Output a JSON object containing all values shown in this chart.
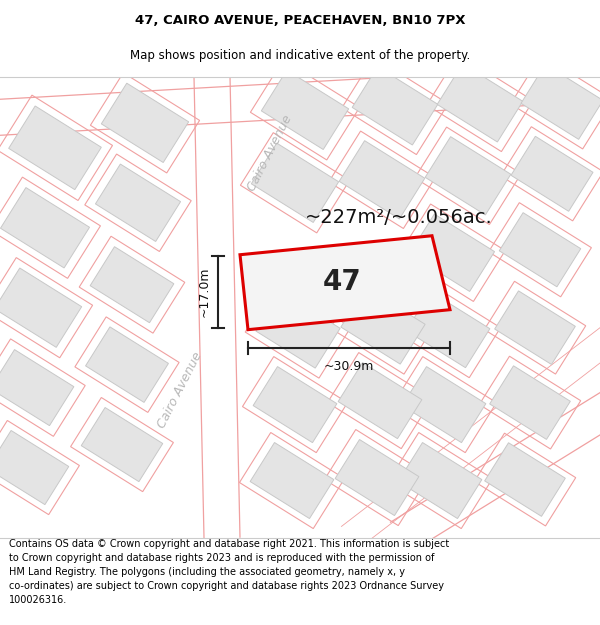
{
  "title_line1": "47, CAIRO AVENUE, PEACEHAVEN, BN10 7PX",
  "title_line2": "Map shows position and indicative extent of the property.",
  "footer_text": "Contains OS data © Crown copyright and database right 2021. This information is subject\nto Crown copyright and database rights 2023 and is reproduced with the permission of\nHM Land Registry. The polygons (including the associated geometry, namely x, y\nco-ordinates) are subject to Crown copyright and database rights 2023 Ordnance Survey\n100026316.",
  "area_label": "~227m²/~0.056ac.",
  "width_label": "~30.9m",
  "height_label": "~17.0m",
  "plot_number": "47",
  "map_bg_color": "#f8f8f8",
  "road_fill": "#ffffff",
  "road_line_color": "#f0a0a0",
  "building_fill": "#e4e4e4",
  "building_border": "#c8c8c8",
  "plot_edge_color": "#dd0000",
  "plot_fill_color": "#f4f4f4",
  "dim_line_color": "#222222",
  "street_label_color": "#b8b8b8",
  "title_fontsize": 9.5,
  "subtitle_fontsize": 8.5,
  "footer_fontsize": 7.0,
  "area_fontsize": 14,
  "number_fontsize": 20,
  "dim_fontsize": 9,
  "street_fontsize": 9
}
